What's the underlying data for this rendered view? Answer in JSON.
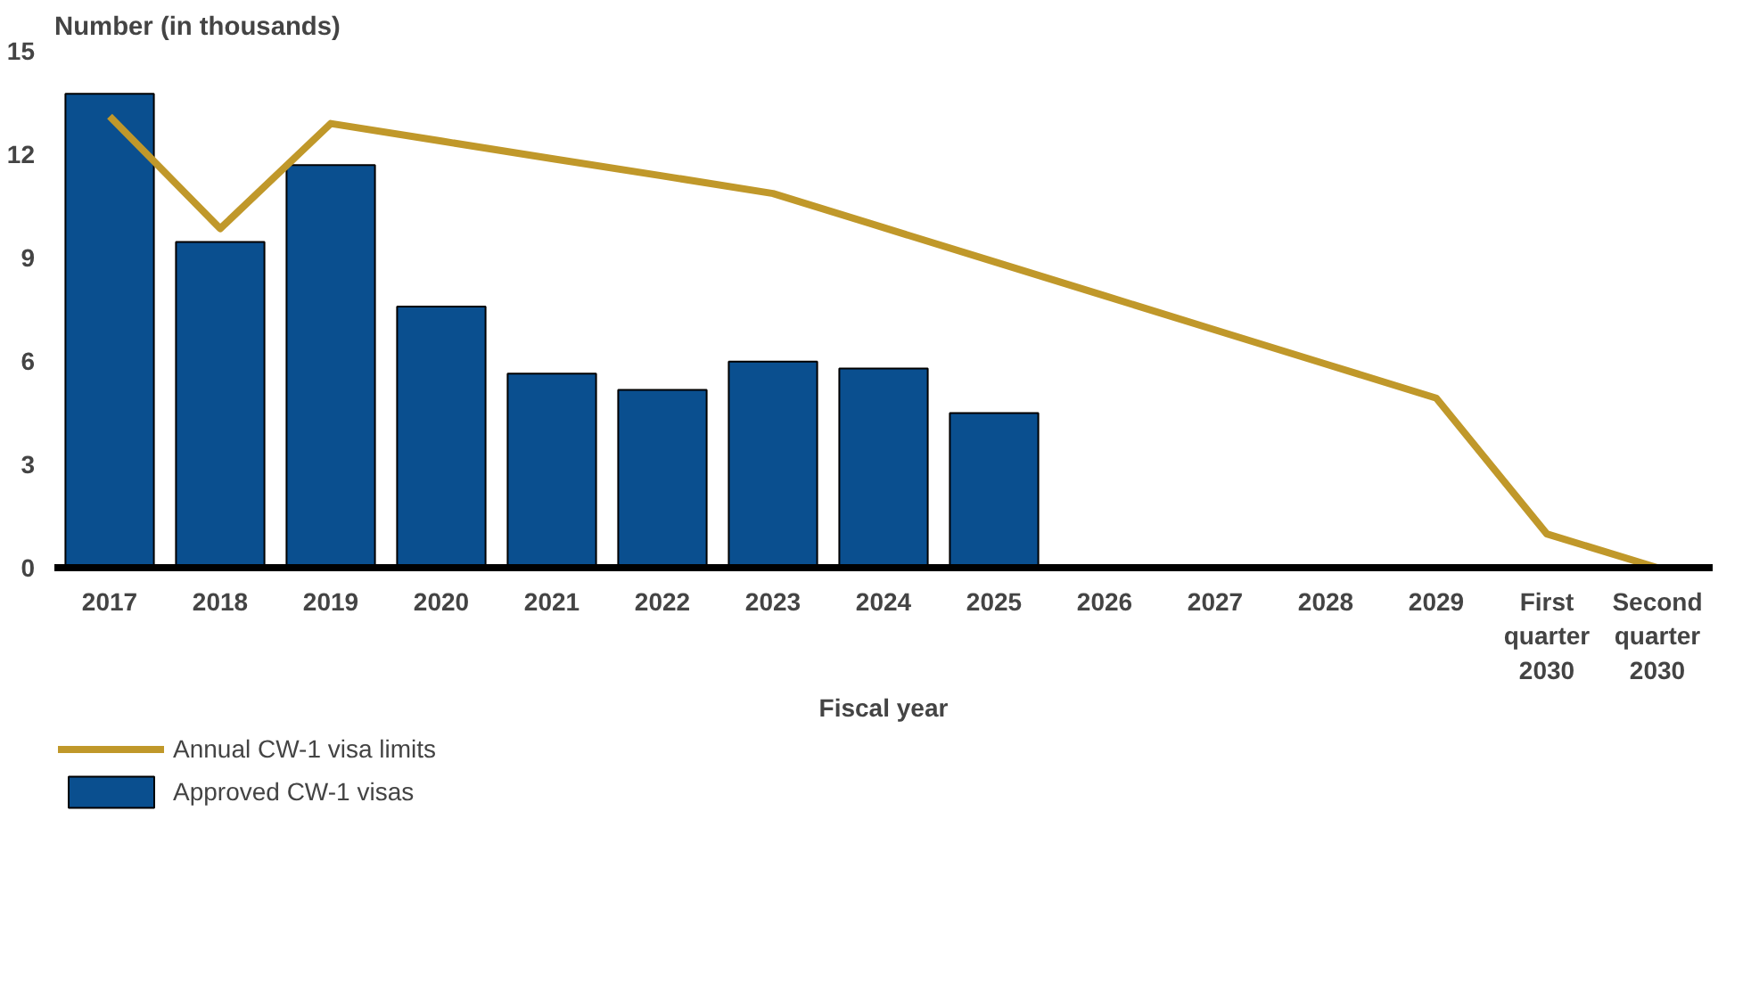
{
  "chart_data": {
    "type": "bar",
    "ylabel": "Number (in thousands)",
    "xlabel": "Fiscal year",
    "categories": [
      "2017",
      "2018",
      "2019",
      "2020",
      "2021",
      "2022",
      "2023",
      "2024",
      "2025",
      "2026",
      "2027",
      "2028",
      "2029",
      "First quarter 2030",
      "Second quarter 2030"
    ],
    "series": [
      {
        "name": "Annual CW-1 visa limits",
        "type": "line",
        "color": "#c0982a",
        "values": [
          13.1,
          9.84,
          12.89,
          12.38,
          11.87,
          11.37,
          10.86,
          9.87,
          8.88,
          7.89,
          6.9,
          5.91,
          4.92,
          0.98,
          0
        ]
      },
      {
        "name": "Approved CW-1 visas",
        "color": "#0a4f8f",
        "values": [
          13.75,
          9.45,
          11.68,
          7.58,
          5.63,
          5.16,
          5.98,
          5.78,
          4.49,
          null,
          null,
          null,
          null,
          null,
          null
        ]
      }
    ],
    "ylim": [
      0,
      15
    ],
    "yticks": [
      0,
      3,
      6,
      9,
      12,
      15
    ],
    "grid": false,
    "legend": "bottom left"
  }
}
